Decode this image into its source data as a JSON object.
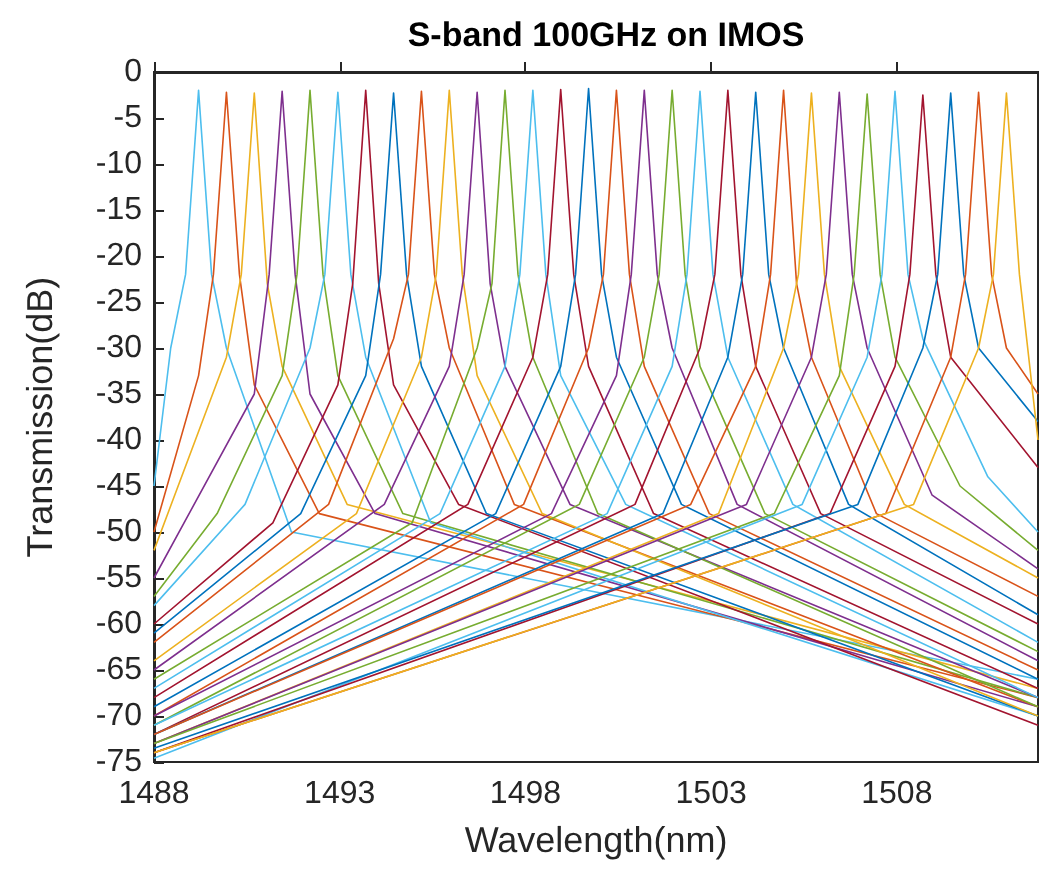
{
  "chart_data": {
    "type": "line",
    "title": "S-band 100GHz on IMOS",
    "xlabel": "Wavelength(nm)",
    "ylabel": "Transmission(dB)",
    "xlim": [
      1488,
      1511.8
    ],
    "ylim": [
      -75,
      0
    ],
    "xticks": [
      1488,
      1493,
      1498,
      1503,
      1508
    ],
    "yticks": [
      -75,
      -70,
      -65,
      -60,
      -55,
      -50,
      -45,
      -40,
      -35,
      -30,
      -25,
      -20,
      -15,
      -10,
      -5,
      0
    ],
    "grid": false,
    "marker": "none",
    "series": [
      {
        "color": "#4dbeee",
        "x": [
          1488,
          1488.45,
          1488.85,
          1489.2,
          1489.55,
          1489.95,
          1491.7,
          1511.8
        ],
        "values": [
          -45,
          -30,
          -22,
          -2,
          -22,
          -30,
          -50,
          -66
        ]
      },
      {
        "color": "#d95319",
        "x": [
          1488,
          1489.2,
          1489.6,
          1489.95,
          1490.3,
          1490.7,
          1492.45,
          1511.8
        ],
        "values": [
          -50,
          -33,
          -22,
          -2.2,
          -22,
          -34,
          -48,
          -68
        ]
      },
      {
        "color": "#edb120",
        "x": [
          1488,
          1489.95,
          1490.35,
          1490.7,
          1491.05,
          1491.45,
          1493.2,
          1511.8
        ],
        "values": [
          -52,
          -31,
          -22,
          -2.3,
          -23,
          -32,
          -47,
          -67
        ]
      },
      {
        "color": "#7e2f8e",
        "x": [
          1488,
          1490.7,
          1491.1,
          1491.45,
          1491.8,
          1492.2,
          1493.95,
          1511.8
        ],
        "values": [
          -55,
          -35,
          -22,
          -2.1,
          -22,
          -35,
          -48,
          -69
        ]
      },
      {
        "color": "#77ac30",
        "x": [
          1488,
          1489.7,
          1491.45,
          1491.85,
          1492.2,
          1492.55,
          1492.95,
          1494.7,
          1511.8
        ],
        "values": [
          -57,
          -48,
          -33,
          -22,
          -2,
          -22,
          -33,
          -48,
          -68
        ]
      },
      {
        "color": "#4dbeee",
        "x": [
          1488,
          1490.45,
          1492.2,
          1492.6,
          1492.95,
          1493.3,
          1493.7,
          1495.45,
          1511.8
        ],
        "values": [
          -58,
          -47,
          -30,
          -22,
          -2.2,
          -22,
          -31,
          -49,
          -70
        ]
      },
      {
        "color": "#a2142f",
        "x": [
          1488,
          1491.2,
          1492.95,
          1493.35,
          1493.7,
          1494.05,
          1494.45,
          1496.2,
          1511.8
        ],
        "values": [
          -60,
          -49,
          -34,
          -23,
          -2,
          -23,
          -34,
          -47,
          -71
        ]
      },
      {
        "color": "#0072bd",
        "x": [
          1488,
          1491.95,
          1493.7,
          1494.1,
          1494.45,
          1494.8,
          1495.2,
          1496.95,
          1511.8
        ],
        "values": [
          -61,
          -48,
          -33,
          -22,
          -2.3,
          -22,
          -32,
          -48,
          -70
        ]
      },
      {
        "color": "#d95319",
        "x": [
          1488,
          1492.7,
          1494.45,
          1494.85,
          1495.2,
          1495.55,
          1495.95,
          1497.7,
          1511.8
        ],
        "values": [
          -62,
          -47,
          -29,
          -22,
          -2.1,
          -22,
          -30,
          -47,
          -69
        ]
      },
      {
        "color": "#edb120",
        "x": [
          1488,
          1493.45,
          1495.2,
          1495.6,
          1495.95,
          1496.3,
          1496.7,
          1498.45,
          1511.8
        ],
        "values": [
          -64,
          -48,
          -31,
          -22,
          -2,
          -22,
          -33,
          -48,
          -70
        ]
      },
      {
        "color": "#7e2f8e",
        "x": [
          1488,
          1494.2,
          1495.95,
          1496.35,
          1496.7,
          1497.05,
          1497.45,
          1499.2,
          1511.8
        ],
        "values": [
          -65,
          -47,
          -32,
          -22,
          -2.2,
          -23,
          -32,
          -47,
          -68
        ]
      },
      {
        "color": "#77ac30",
        "x": [
          1488,
          1494.95,
          1496.7,
          1497.1,
          1497.45,
          1497.8,
          1498.2,
          1499.95,
          1511.8
        ],
        "values": [
          -66,
          -49,
          -30,
          -23,
          -2,
          -22,
          -31,
          -48,
          -69
        ]
      },
      {
        "color": "#4dbeee",
        "x": [
          1488,
          1495.7,
          1497.45,
          1497.85,
          1498.2,
          1498.55,
          1498.95,
          1500.7,
          1511.8
        ],
        "values": [
          -67,
          -48,
          -32,
          -22,
          -2,
          -22,
          -33,
          -47,
          -68
        ]
      },
      {
        "color": "#a2142f",
        "x": [
          1488,
          1496.45,
          1498.2,
          1498.6,
          1498.95,
          1499.3,
          1499.7,
          1501.45,
          1511.8
        ],
        "values": [
          -68,
          -47,
          -31,
          -22,
          -1.9,
          -22,
          -32,
          -48,
          -67
        ]
      },
      {
        "color": "#0072bd",
        "x": [
          1488,
          1497.2,
          1498.95,
          1499.35,
          1499.7,
          1500.05,
          1500.45,
          1502.2,
          1511.8
        ],
        "values": [
          -69,
          -48,
          -32,
          -22,
          -1.8,
          -22,
          -31,
          -47,
          -66
        ]
      },
      {
        "color": "#d95319",
        "x": [
          1488,
          1497.95,
          1499.7,
          1500.1,
          1500.45,
          1500.8,
          1501.2,
          1502.95,
          1511.8
        ],
        "values": [
          -70,
          -47,
          -30,
          -22,
          -2,
          -22,
          -32,
          -48,
          -65
        ]
      },
      {
        "color": "#7e2f8e",
        "x": [
          1488,
          1498.7,
          1500.45,
          1500.85,
          1501.2,
          1501.55,
          1501.95,
          1503.7,
          1511.8
        ],
        "values": [
          -70,
          -48,
          -33,
          -22,
          -2,
          -22,
          -30,
          -47,
          -64
        ]
      },
      {
        "color": "#77ac30",
        "x": [
          1488,
          1499.45,
          1501.2,
          1501.6,
          1501.95,
          1502.3,
          1502.7,
          1504.45,
          1511.8
        ],
        "values": [
          -71,
          -47,
          -31,
          -22,
          -2,
          -22,
          -32,
          -48,
          -63
        ]
      },
      {
        "color": "#4dbeee",
        "x": [
          1488,
          1500.2,
          1501.95,
          1502.35,
          1502.7,
          1503.05,
          1503.45,
          1505.2,
          1511.8
        ],
        "values": [
          -71,
          -48,
          -32,
          -22,
          -2.1,
          -22,
          -31,
          -47,
          -62
        ]
      },
      {
        "color": "#a2142f",
        "x": [
          1488,
          1500.95,
          1502.7,
          1503.1,
          1503.45,
          1503.8,
          1504.2,
          1505.95,
          1511.8
        ],
        "values": [
          -72,
          -47,
          -30,
          -22,
          -2,
          -22,
          -32,
          -48,
          -60
        ]
      },
      {
        "color": "#0072bd",
        "x": [
          1488,
          1501.7,
          1503.45,
          1503.85,
          1504.2,
          1504.55,
          1504.95,
          1506.7,
          1511.8
        ],
        "values": [
          -72,
          -48,
          -31,
          -22,
          -2.2,
          -22,
          -30,
          -47,
          -59
        ]
      },
      {
        "color": "#d95319",
        "x": [
          1488,
          1502.45,
          1504.2,
          1504.6,
          1504.95,
          1505.3,
          1505.7,
          1507.45,
          1511.8
        ],
        "values": [
          -72,
          -47,
          -32,
          -22,
          -2,
          -23,
          -31,
          -48,
          -57
        ]
      },
      {
        "color": "#edb120",
        "x": [
          1488,
          1503.2,
          1504.95,
          1505.35,
          1505.7,
          1506.05,
          1506.45,
          1508.2,
          1511.8
        ],
        "values": [
          -73,
          -48,
          -30,
          -22,
          -2.3,
          -22,
          -32,
          -47,
          -55
        ]
      },
      {
        "color": "#7e2f8e",
        "x": [
          1488,
          1503.95,
          1505.7,
          1506.1,
          1506.45,
          1506.8,
          1507.2,
          1508.95,
          1511.8
        ],
        "values": [
          -73,
          -47,
          -31,
          -22,
          -2.2,
          -22,
          -30,
          -46,
          -54
        ]
      },
      {
        "color": "#77ac30",
        "x": [
          1488,
          1504.7,
          1506.45,
          1506.85,
          1507.2,
          1507.55,
          1507.95,
          1509.7,
          1511.8
        ],
        "values": [
          -73,
          -48,
          -33,
          -22,
          -2.4,
          -22,
          -31,
          -45,
          -52
        ]
      },
      {
        "color": "#4dbeee",
        "x": [
          1488,
          1505.45,
          1507.2,
          1507.6,
          1507.95,
          1508.3,
          1508.7,
          1510.45,
          1511.8
        ],
        "values": [
          -74.6,
          -47,
          -31,
          -22,
          -2.1,
          -22,
          -29,
          -44,
          -50
        ]
      },
      {
        "color": "#a2142f",
        "x": [
          1488,
          1506.2,
          1507.95,
          1508.35,
          1508.7,
          1509.05,
          1509.45,
          1511.8
        ],
        "values": [
          -74,
          -48,
          -32,
          -22,
          -2.5,
          -22,
          -31,
          -43
        ]
      },
      {
        "color": "#0072bd",
        "x": [
          1488,
          1506.95,
          1508.7,
          1509.1,
          1509.45,
          1509.8,
          1510.2,
          1511.8
        ],
        "values": [
          -73.5,
          -47,
          -30,
          -22,
          -2.3,
          -22,
          -30,
          -38
        ]
      },
      {
        "color": "#d95319",
        "x": [
          1488,
          1507.7,
          1509.45,
          1509.85,
          1510.2,
          1510.55,
          1510.95,
          1511.8
        ],
        "values": [
          -74,
          -48,
          -31,
          -22,
          -2.2,
          -22,
          -30,
          -35
        ]
      },
      {
        "color": "#edb120",
        "x": [
          1488,
          1508.45,
          1510.2,
          1510.6,
          1510.95,
          1511.3,
          1511.8
        ],
        "values": [
          -74,
          -47,
          -30,
          -22,
          -2.3,
          -22,
          -40
        ]
      }
    ]
  }
}
